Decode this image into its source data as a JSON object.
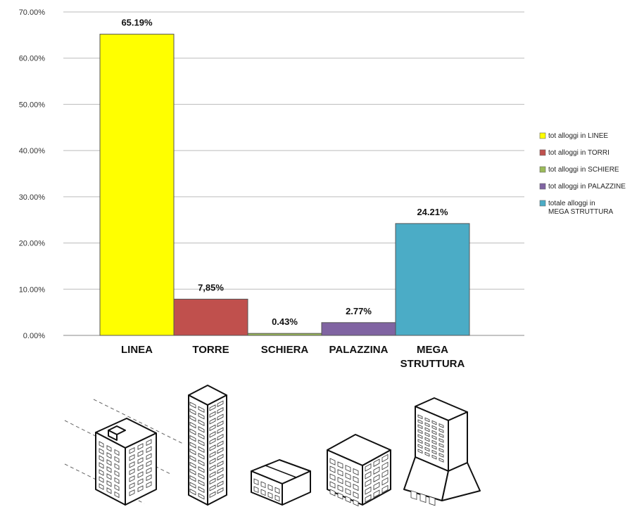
{
  "chart_data": {
    "type": "bar",
    "categories": [
      [
        "LINEA"
      ],
      [
        "TORRE"
      ],
      [
        "SCHIERA"
      ],
      [
        "PALAZZINA"
      ],
      [
        "MEGA",
        "STRUTTURA"
      ]
    ],
    "values": [
      65.19,
      7.85,
      0.43,
      2.77,
      24.21
    ],
    "data_labels": [
      "65.19%",
      "7,85%",
      "0.43%",
      "2.77%",
      "24.21%"
    ],
    "colors": [
      "#ffff00",
      "#c0504d",
      "#9bbb59",
      "#8064a2",
      "#4bacc6"
    ],
    "ylim": [
      0,
      70
    ],
    "yticks": [
      "0.00%",
      "10.00%",
      "20.00%",
      "30.00%",
      "40.00%",
      "50.00%",
      "60.00%",
      "70.00%"
    ],
    "grid": true,
    "legend_position": "right",
    "legend": [
      [
        "tot alloggi in LINEE"
      ],
      [
        "tot alloggi in TORRI"
      ],
      [
        "tot alloggi in SCHIERE"
      ],
      [
        "tot alloggi in PALAZZINE"
      ],
      [
        "totale alloggi in",
        "MEGA STRUTTURA"
      ]
    ]
  },
  "illustrations": [
    {
      "icon": "linea-building-icon"
    },
    {
      "icon": "torre-building-icon"
    },
    {
      "icon": "schiera-building-icon"
    },
    {
      "icon": "palazzina-building-icon"
    },
    {
      "icon": "mega-struttura-building-icon"
    }
  ]
}
